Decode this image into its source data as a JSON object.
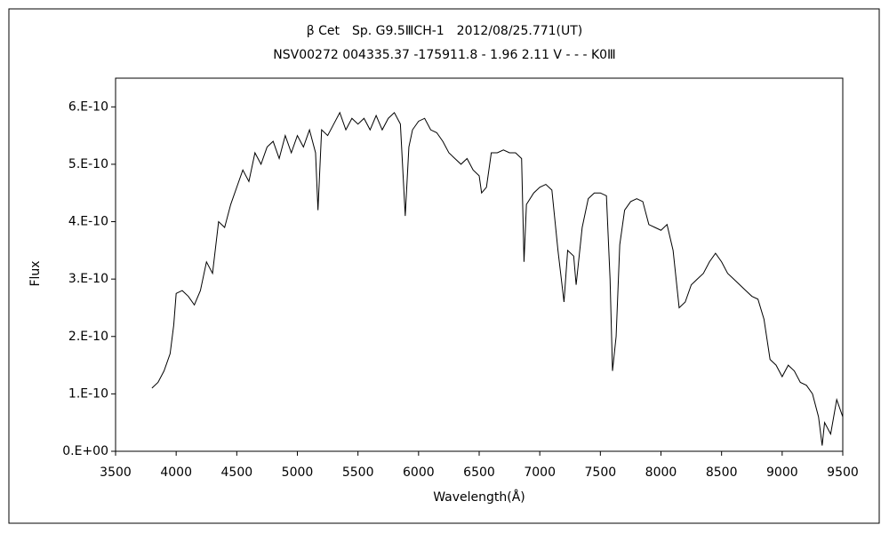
{
  "chart_data": {
    "type": "line",
    "title": "β Cet　Sp. G9.5ⅢCH-1　2012/08/25.771(UT)",
    "subtitle": "NSV00272 004335.37 -175911.8 - 1.96 2.11 V - - - K0Ⅲ",
    "xlabel": "Wavelength(Å)",
    "ylabel": "Flux",
    "xlim": [
      3500,
      9500
    ],
    "ylim": [
      0,
      6.5e-10
    ],
    "xticks": [
      3500,
      4000,
      4500,
      5000,
      5500,
      6000,
      6500,
      7000,
      7500,
      8000,
      8500,
      9000,
      9500
    ],
    "yticks": [
      {
        "value": 0,
        "label": "0.E+00"
      },
      {
        "value": 1e-10,
        "label": "1.E-10"
      },
      {
        "value": 2e-10,
        "label": "2.E-10"
      },
      {
        "value": 3e-10,
        "label": "3.E-10"
      },
      {
        "value": 4e-10,
        "label": "4.E-10"
      },
      {
        "value": 5e-10,
        "label": "5.E-10"
      },
      {
        "value": 6e-10,
        "label": "6.E-10"
      }
    ],
    "color": "#000000",
    "x": [
      3800,
      3850,
      3900,
      3950,
      3980,
      4000,
      4050,
      4100,
      4150,
      4200,
      4250,
      4300,
      4350,
      4400,
      4450,
      4500,
      4550,
      4600,
      4650,
      4700,
      4750,
      4800,
      4850,
      4900,
      4950,
      5000,
      5050,
      5100,
      5150,
      5170,
      5200,
      5250,
      5300,
      5350,
      5400,
      5450,
      5500,
      5550,
      5600,
      5650,
      5700,
      5750,
      5800,
      5850,
      5890,
      5920,
      5950,
      6000,
      6050,
      6100,
      6150,
      6200,
      6250,
      6300,
      6350,
      6400,
      6450,
      6500,
      6520,
      6560,
      6600,
      6650,
      6700,
      6750,
      6800,
      6850,
      6870,
      6890,
      6950,
      7000,
      7050,
      7100,
      7150,
      7200,
      7230,
      7280,
      7300,
      7350,
      7400,
      7450,
      7500,
      7550,
      7580,
      7600,
      7630,
      7660,
      7700,
      7750,
      7800,
      7850,
      7900,
      7950,
      8000,
      8050,
      8100,
      8150,
      8200,
      8250,
      8300,
      8350,
      8400,
      8450,
      8500,
      8550,
      8600,
      8650,
      8700,
      8750,
      8800,
      8850,
      8900,
      8950,
      9000,
      9050,
      9100,
      9150,
      9200,
      9250,
      9300,
      9330,
      9350,
      9400,
      9450,
      9500
    ],
    "values": [
      1.1e-10,
      1.2e-10,
      1.4e-10,
      1.7e-10,
      2.2e-10,
      2.75e-10,
      2.8e-10,
      2.7e-10,
      2.55e-10,
      2.8e-10,
      3.3e-10,
      3.1e-10,
      4e-10,
      3.9e-10,
      4.3e-10,
      4.6e-10,
      4.9e-10,
      4.7e-10,
      5.2e-10,
      5e-10,
      5.3e-10,
      5.4e-10,
      5.1e-10,
      5.5e-10,
      5.2e-10,
      5.5e-10,
      5.3e-10,
      5.6e-10,
      5.2e-10,
      4.2e-10,
      5.6e-10,
      5.5e-10,
      5.7e-10,
      5.9e-10,
      5.6e-10,
      5.8e-10,
      5.7e-10,
      5.8e-10,
      5.6e-10,
      5.85e-10,
      5.6e-10,
      5.8e-10,
      5.9e-10,
      5.7e-10,
      4.1e-10,
      5.3e-10,
      5.6e-10,
      5.75e-10,
      5.8e-10,
      5.6e-10,
      5.55e-10,
      5.4e-10,
      5.2e-10,
      5.1e-10,
      5e-10,
      5.1e-10,
      4.9e-10,
      4.8e-10,
      4.5e-10,
      4.6e-10,
      5.2e-10,
      5.2e-10,
      5.25e-10,
      5.2e-10,
      5.2e-10,
      5.1e-10,
      3.3e-10,
      4.3e-10,
      4.5e-10,
      4.6e-10,
      4.65e-10,
      4.55e-10,
      3.5e-10,
      2.6e-10,
      3.5e-10,
      3.4e-10,
      2.9e-10,
      3.9e-10,
      4.4e-10,
      4.5e-10,
      4.5e-10,
      4.45e-10,
      3e-10,
      1.4e-10,
      2e-10,
      3.6e-10,
      4.2e-10,
      4.35e-10,
      4.4e-10,
      4.35e-10,
      3.95e-10,
      3.9e-10,
      3.85e-10,
      3.95e-10,
      3.5e-10,
      2.5e-10,
      2.6e-10,
      2.9e-10,
      3e-10,
      3.1e-10,
      3.3e-10,
      3.45e-10,
      3.3e-10,
      3.1e-10,
      3e-10,
      2.9e-10,
      2.8e-10,
      2.7e-10,
      2.65e-10,
      2.3e-10,
      1.6e-10,
      1.5e-10,
      1.3e-10,
      1.5e-10,
      1.4e-10,
      1.2e-10,
      1.15e-10,
      1e-10,
      6e-11,
      1e-11,
      5e-11,
      3e-11,
      9e-11,
      6e-11
    ]
  }
}
